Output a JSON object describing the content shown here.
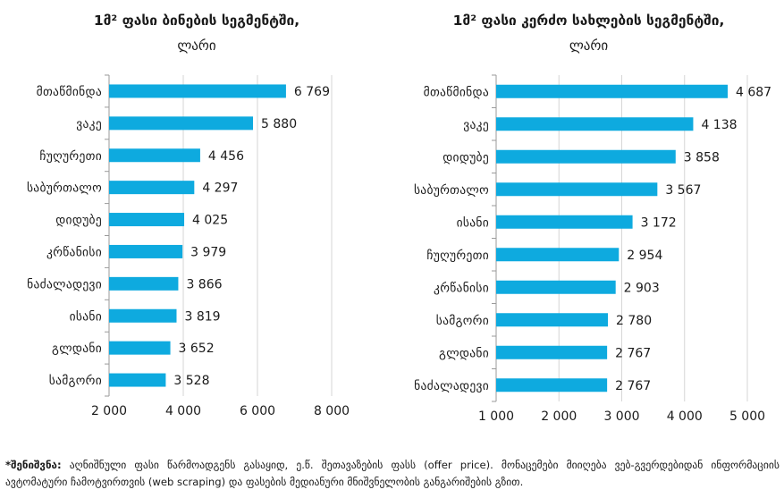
{
  "chart_data": [
    {
      "type": "bar",
      "orientation": "horizontal",
      "title": "1მ² ფასი ბინების სეგმენტში,",
      "subtitle": "ლარი",
      "categories": [
        "მთაწმინდა",
        "ვაკე",
        "ჩუღურეთი",
        "საბურთალო",
        "დიდუბე",
        "კრწანისი",
        "ნაძალადევი",
        "ისანი",
        "გლდანი",
        "სამგორი"
      ],
      "values": [
        6769,
        5880,
        4456,
        4297,
        4025,
        3979,
        3866,
        3819,
        3652,
        3528
      ],
      "data_labels": [
        "6 769",
        "5 880",
        "4 456",
        "4 297",
        "4 025",
        "3 979",
        "3 866",
        "3 819",
        "3 652",
        "3 528"
      ],
      "xlim": [
        2000,
        8000
      ],
      "xticks": [
        2000,
        4000,
        6000,
        8000
      ],
      "xtick_labels": [
        "2 000",
        "4 000",
        "6 000",
        "8 000"
      ],
      "grid": true,
      "color": "#0eaadf"
    },
    {
      "type": "bar",
      "orientation": "horizontal",
      "title": "1მ² ფასი კერძო სახლების სეგმენტში,",
      "subtitle": "ლარი",
      "categories": [
        "მთაწმინდა",
        "ვაკე",
        "დიდუბე",
        "საბურთალო",
        "ისანი",
        "ჩუღურეთი",
        "კრწანისი",
        "სამგორი",
        "გლდანი",
        "ნაძალადევი"
      ],
      "values": [
        4687,
        4138,
        3858,
        3567,
        3172,
        2954,
        2903,
        2780,
        2767,
        2767
      ],
      "data_labels": [
        "4 687",
        "4 138",
        "3 858",
        "3 567",
        "3 172",
        "2 954",
        "2 903",
        "2 780",
        "2 767",
        "2 767"
      ],
      "xlim": [
        1000,
        5000
      ],
      "xticks": [
        1000,
        2000,
        3000,
        4000,
        5000
      ],
      "xtick_labels": [
        "1 000",
        "2 000",
        "3 000",
        "4 000",
        "5 000"
      ],
      "grid": true,
      "color": "#0eaadf"
    }
  ],
  "footnote": {
    "label": "*შენიშვნა:",
    "text": " აღნიშნული ფასი წარმოადგენს გასაყიდ, ე.წ. შეთავაზების ფასს (offer price). მონაცემები მიიღება ვებ-გვერდებიდან ინფორმაციის ავტომატური ჩამოტვირთვის (web scraping) და ფასების მედიანური მნიშვნელობის განგარიშების გზით."
  }
}
